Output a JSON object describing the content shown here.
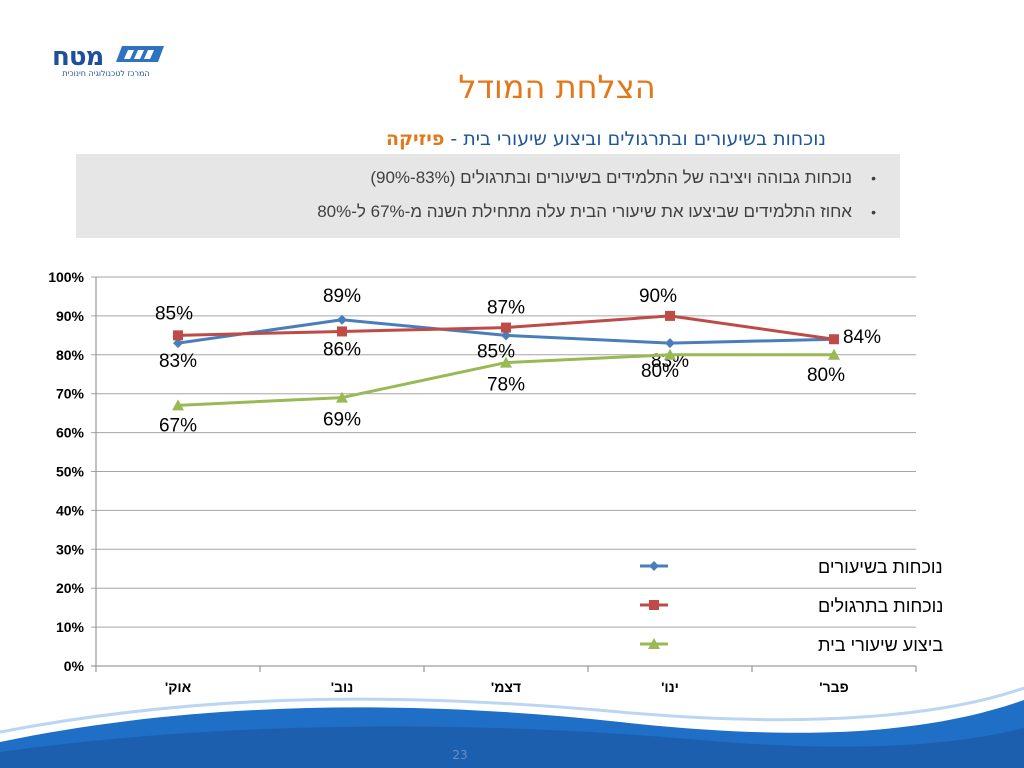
{
  "header": {
    "logo_text": "מטח",
    "logo_subtext": "המרכז לטכנולוגיה חינוכית",
    "title": "הצלחת המודל",
    "subtitle_main": "נוכחות בשיעורים ובתרגולים וביצוע שיעורי בית - ",
    "subtitle_accent": "פיזיקה"
  },
  "bullets": [
    "נוכחות גבוהה ויציבה של התלמידים בשיעורים ובתרגולים (83%-90%)",
    "אחוז התלמידים שביצעו את שיעורי הבית עלה מתחילת השנה  מ-67% ל-80%"
  ],
  "footer": {
    "page_number": "23"
  },
  "colors": {
    "title": "#e3781a",
    "subtitle": "#1f5699",
    "series_lessons": "#4a7ebb",
    "series_exercises": "#be4b48",
    "series_homework": "#98b954",
    "footer_blue": "#1f6fc7"
  },
  "chart_data": {
    "type": "line",
    "categories": [
      "אוק'",
      "נוב'",
      "דצמ'",
      "ינו'",
      "פבר'"
    ],
    "y_ticks": [
      "0%",
      "10%",
      "20%",
      "30%",
      "40%",
      "50%",
      "60%",
      "70%",
      "80%",
      "90%",
      "100%"
    ],
    "ylim": [
      0,
      100
    ],
    "grid": true,
    "legend_position": "bottom-right",
    "series": [
      {
        "name": "נוכחות בשיעורים",
        "marker": "diamond",
        "color": "#4a7ebb",
        "values": [
          83,
          89,
          85,
          83,
          84
        ],
        "labels": [
          "83%",
          "89%",
          "85%",
          "83%",
          ""
        ]
      },
      {
        "name": "נוכחות בתרגולים",
        "marker": "square",
        "color": "#be4b48",
        "values": [
          85,
          86,
          87,
          90,
          84
        ],
        "labels": [
          "85%",
          "86%",
          "87%",
          "90%",
          "84%"
        ]
      },
      {
        "name": "ביצוע שיעורי בית",
        "marker": "triangle",
        "color": "#98b954",
        "values": [
          67,
          69,
          78,
          80,
          80
        ],
        "labels": [
          "67%",
          "69%",
          "78%",
          "80%",
          "80%"
        ]
      }
    ]
  }
}
